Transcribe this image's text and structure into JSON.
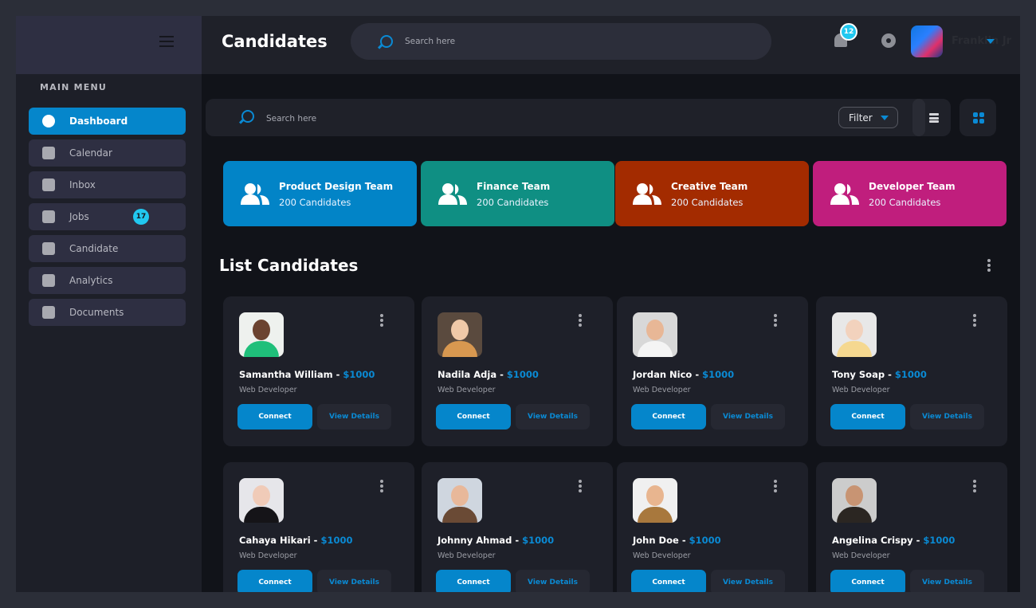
{
  "header": {
    "title": "Candidates",
    "search_placeholder": "Search here",
    "notification_count": "12",
    "user_name": "Franklin Jr"
  },
  "sidebar": {
    "menu_title": "MAIN MENU",
    "items": [
      {
        "label": "Dashboard",
        "icon": "dashboard-icon",
        "active": true
      },
      {
        "label": "Calendar",
        "icon": "calendar-icon"
      },
      {
        "label": "Inbox",
        "icon": "mail-icon"
      },
      {
        "label": "Jobs",
        "icon": "briefcase-icon",
        "badge": "17"
      },
      {
        "label": "Candidate",
        "icon": "candidate-icon"
      },
      {
        "label": "Analytics",
        "icon": "analytics-icon"
      },
      {
        "label": "Documents",
        "icon": "document-icon"
      }
    ]
  },
  "toolbar": {
    "search_placeholder": "Search here",
    "filter_label": "Filter"
  },
  "teams": [
    {
      "name": "Product Design Team",
      "count": "200 Candidates",
      "color": "#0284c7"
    },
    {
      "name": "Finance Team",
      "count": "200 Candidates",
      "color": "#0f8f83"
    },
    {
      "name": "Creative Team",
      "count": "200 Candidates",
      "color": "#a32b00"
    },
    {
      "name": "Developer Team",
      "count": "200 Candidates",
      "color": "#c01e7d"
    }
  ],
  "list": {
    "title": "List Candidates",
    "connect_label": "Connect",
    "view_label": "View Details",
    "candidates": [
      {
        "name": "Samantha William",
        "price": "$1000",
        "role": "Web Developer"
      },
      {
        "name": "Nadila Adja",
        "price": "$1000",
        "role": "Web Developer"
      },
      {
        "name": "Jordan Nico",
        "price": "$1000",
        "role": "Web Developer"
      },
      {
        "name": "Tony Soap",
        "price": "$1000",
        "role": "Web Developer"
      },
      {
        "name": "Cahaya Hikari",
        "price": "$1000",
        "role": "Web Developer"
      },
      {
        "name": "Johnny Ahmad",
        "price": "$1000",
        "role": "Web Developer"
      },
      {
        "name": "John Doe",
        "price": "$1000",
        "role": "Web Developer"
      },
      {
        "name": "Angelina Crispy",
        "price": "$1000",
        "role": "Web Developer"
      }
    ]
  }
}
